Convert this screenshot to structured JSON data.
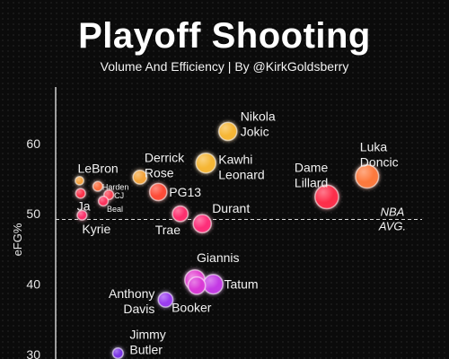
{
  "chart_data": {
    "type": "scatter",
    "title": "Playoff Shooting",
    "subtitle": "Volume And Efficiency | By @KirkGoldsberry",
    "xlabel": "",
    "ylabel": "eFG%",
    "ylim": [
      29,
      68
    ],
    "xlim": [
      0,
      100
    ],
    "yticks": [
      30,
      40,
      50,
      60
    ],
    "grid": false,
    "reference_line": {
      "y": 49.2,
      "label_lines": [
        "NBA",
        "AVG."
      ]
    },
    "points": [
      {
        "label_lines": [
          "Nikola",
          "Jokic"
        ],
        "x": 47,
        "y": 61.7,
        "volume": 3.0,
        "color": "#f7b733"
      },
      {
        "label_lines": [
          "Luka",
          "Doncic"
        ],
        "x": 85,
        "y": 55.3,
        "volume": 4.2,
        "color": "#ff7a3c"
      },
      {
        "label_lines": [
          "Kawhi",
          "Leonard"
        ],
        "x": 41,
        "y": 57.2,
        "volume": 3.4,
        "color": "#f7b733"
      },
      {
        "label_lines": [
          "Derrick",
          "Rose"
        ],
        "x": 23,
        "y": 55.2,
        "volume": 2.0,
        "color": "#f5a53a"
      },
      {
        "label_lines": [
          "Dame",
          "Lillard"
        ],
        "x": 74,
        "y": 52.4,
        "volume": 4.3,
        "color": "#ff2d4a"
      },
      {
        "label_lines": [
          "PG13"
        ],
        "x": 28,
        "y": 53.1,
        "volume": 2.8,
        "color": "#ff4a35"
      },
      {
        "label_lines": [
          "LeBron"
        ],
        "x": 6.5,
        "y": 54.7,
        "volume": 0.7,
        "color": "#f7a23a"
      },
      {
        "label_lines": [
          "Harden"
        ],
        "x": 11.5,
        "y": 53.9,
        "volume": 1.0,
        "color": "#ff6a3a"
      },
      {
        "label_lines": [
          "CJ"
        ],
        "x": 14.5,
        "y": 52.7,
        "volume": 1.0,
        "color": "#ff3a4e"
      },
      {
        "label_lines": [
          "Ja"
        ],
        "x": 6.8,
        "y": 52.9,
        "volume": 1.0,
        "color": "#ff2d48"
      },
      {
        "label_lines": [
          "Beal"
        ],
        "x": 13.0,
        "y": 51.8,
        "volume": 1.0,
        "color": "#ff2d5a"
      },
      {
        "label_lines": [
          "Kyrie"
        ],
        "x": 7.2,
        "y": 49.8,
        "volume": 1.0,
        "color": "#ff2d6a"
      },
      {
        "label_lines": [
          "Trae"
        ],
        "x": 34,
        "y": 50.0,
        "volume": 2.4,
        "color": "#ff2d6e"
      },
      {
        "label_lines": [
          "Durant"
        ],
        "x": 40,
        "y": 48.6,
        "volume": 3.0,
        "color": "#ff2d7a"
      },
      {
        "label_lines": [
          "Giannis"
        ],
        "x": 38,
        "y": 40.6,
        "volume": 3.5,
        "color": "#e43ad0"
      },
      {
        "label_lines": [
          "Tatum"
        ],
        "x": 43,
        "y": 40.0,
        "volume": 3.3,
        "color": "#c43ae6"
      },
      {
        "label_lines": [
          "Booker"
        ],
        "x": 38.5,
        "y": 39.8,
        "volume": 2.8,
        "color": "#d936d6"
      },
      {
        "label_lines": [
          "Anthony",
          "Davis"
        ],
        "x": 30,
        "y": 37.8,
        "volume": 2.2,
        "color": "#9b3bf2"
      },
      {
        "label_lines": [
          "Jimmy",
          "Butler"
        ],
        "x": 17,
        "y": 30.2,
        "volume": 1.2,
        "color": "#7a2fe8"
      }
    ]
  }
}
